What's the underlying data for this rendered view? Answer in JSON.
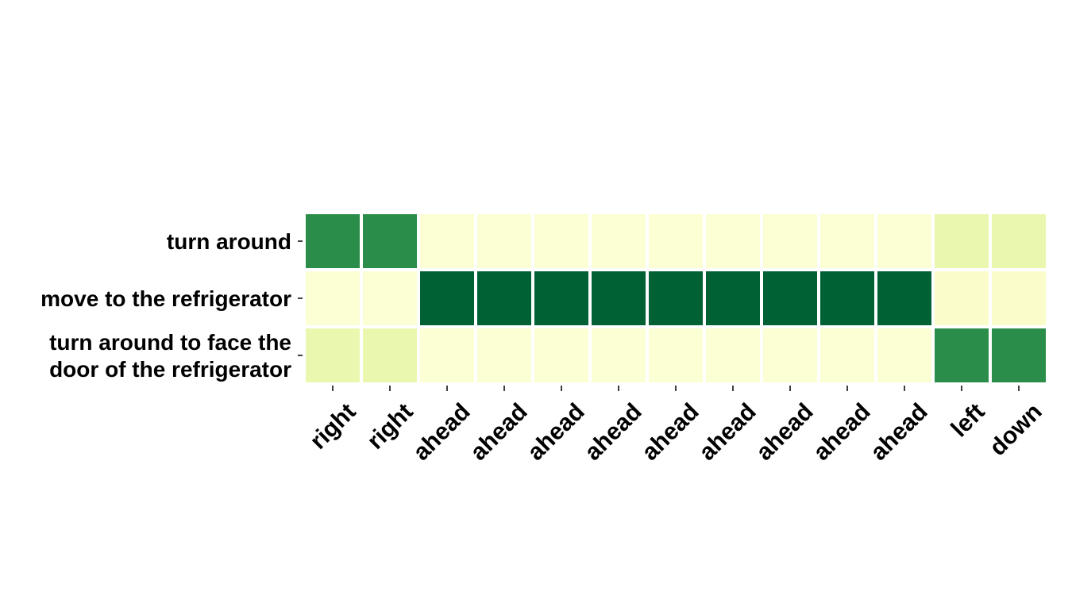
{
  "chart_data": {
    "type": "heatmap",
    "title": "",
    "xlabel": "",
    "ylabel": "",
    "rows": [
      [
        "turn around"
      ],
      [
        "move to the refrigerator"
      ],
      [
        "turn around to face the",
        "door of the refrigerator"
      ]
    ],
    "columns": [
      "right",
      "right",
      "ahead",
      "ahead",
      "ahead",
      "ahead",
      "ahead",
      "ahead",
      "ahead",
      "ahead",
      "ahead",
      "left",
      "down"
    ],
    "values": [
      [
        0.72,
        0.72,
        0.05,
        0.05,
        0.05,
        0.05,
        0.05,
        0.05,
        0.05,
        0.05,
        0.05,
        0.18,
        0.18
      ],
      [
        0.05,
        0.05,
        0.9,
        0.9,
        0.9,
        0.9,
        0.9,
        0.9,
        0.9,
        0.9,
        0.9,
        0.08,
        0.08
      ],
      [
        0.18,
        0.18,
        0.05,
        0.05,
        0.05,
        0.05,
        0.05,
        0.05,
        0.05,
        0.05,
        0.05,
        0.72,
        0.72
      ]
    ],
    "colormap": "YlGn",
    "colorbar": false,
    "grid": false
  }
}
